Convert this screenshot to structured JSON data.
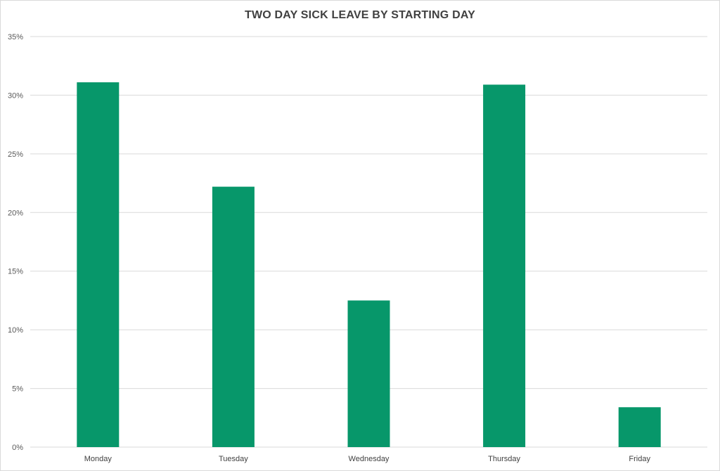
{
  "chart_data": {
    "type": "bar",
    "title": "TWO DAY SICK LEAVE BY STARTING DAY",
    "xlabel": "",
    "ylabel": "",
    "categories": [
      "Monday",
      "Tuesday",
      "Wednesday",
      "Thursday",
      "Friday"
    ],
    "values": [
      31.1,
      22.2,
      12.5,
      30.9,
      3.4
    ],
    "value_format": "percent",
    "ylim": [
      0,
      35
    ],
    "yticks": [
      0,
      5,
      10,
      15,
      20,
      25,
      30,
      35
    ],
    "ytick_labels": [
      "0%",
      "5%",
      "10%",
      "15%",
      "20%",
      "25%",
      "30%",
      "35%"
    ],
    "grid": true,
    "legend": "none",
    "bar_color": "#07976a",
    "grid_color": "#d9d9d9"
  }
}
